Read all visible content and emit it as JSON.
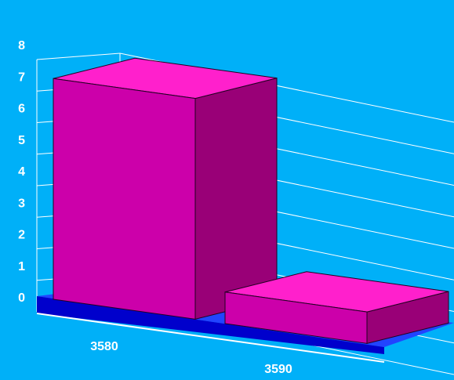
{
  "chart_data": {
    "type": "bar",
    "categories": [
      "3580",
      "3590"
    ],
    "values": [
      7,
      1
    ],
    "ylim": [
      0,
      8
    ],
    "yticks": [
      "0",
      "1",
      "2",
      "3",
      "4",
      "5",
      "6",
      "7",
      "8"
    ],
    "grid": true,
    "three_d": true,
    "title": "",
    "xlabel": "",
    "ylabel": "",
    "colors": {
      "background": "#00b0f8",
      "bar_front": "#cc00aa",
      "bar_top": "#ff20cc",
      "bar_side": "#990077",
      "base_top": "#2244ff",
      "base_front": "#0000cc",
      "grid": "#ffffff",
      "text": "#ffffff"
    }
  }
}
